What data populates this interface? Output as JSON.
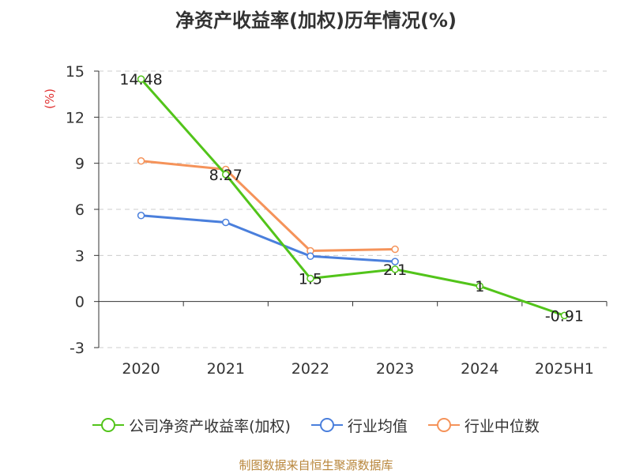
{
  "title": "净资产收益率(加权)历年情况(%)",
  "source": "制图数据来自恒生聚源数据库",
  "chart_data": {
    "type": "line",
    "categories": [
      "2020",
      "2021",
      "2022",
      "2023",
      "2024",
      "2025H1"
    ],
    "ylabel": "(%)",
    "ylim": [
      -3,
      15
    ],
    "yticks": [
      -3,
      0,
      3,
      6,
      9,
      12,
      15
    ],
    "grid": true,
    "legend_position": "bottom",
    "series": [
      {
        "name": "公司净资产收益率(加权)",
        "color": "#52c41a",
        "values": [
          14.48,
          8.27,
          1.5,
          2.1,
          1,
          -0.91
        ],
        "labels": [
          "14.48",
          "8.27",
          "1.5",
          "2.1",
          "1",
          "-0.91"
        ]
      },
      {
        "name": "行业均值",
        "color": "#4a7fdc",
        "values": [
          5.6,
          5.15,
          2.95,
          2.6,
          null,
          null
        ]
      },
      {
        "name": "行业中位数",
        "color": "#f5935a",
        "values": [
          9.15,
          8.6,
          3.3,
          3.4,
          null,
          null
        ]
      }
    ]
  }
}
